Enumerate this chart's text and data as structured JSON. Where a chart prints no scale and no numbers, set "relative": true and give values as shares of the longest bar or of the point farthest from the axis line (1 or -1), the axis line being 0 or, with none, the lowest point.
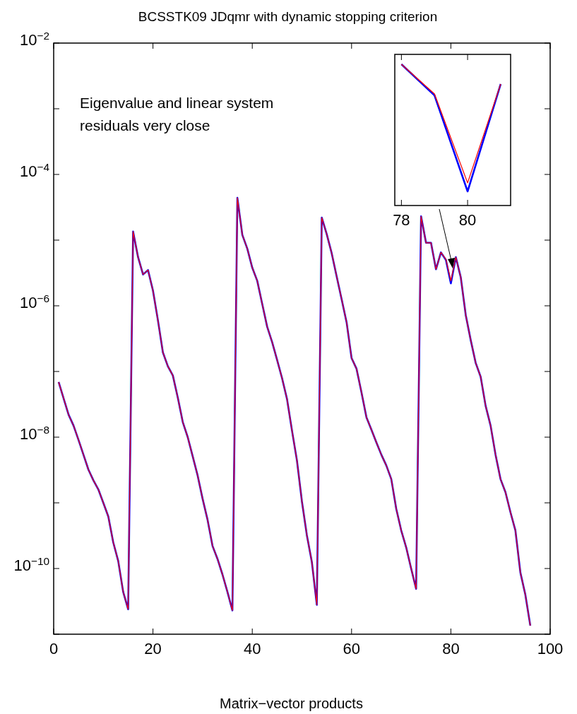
{
  "chart_data": [
    {
      "type": "line",
      "title": "BCSSTK09 JDqmr with dynamic stopping criterion",
      "xlabel": "Matrix−vector products",
      "annotations": [
        "Eigenvalue and linear system\nresiduals very close"
      ],
      "log": "y",
      "grid": false,
      "xlim": [
        0,
        100
      ],
      "xticks": [
        0,
        20,
        40,
        60,
        80,
        100
      ],
      "ylim": [
        1e-11,
        0.01
      ],
      "yticks": [
        {
          "value": 0.01,
          "label": "10$^{−2}$"
        },
        {
          "value": 0.001,
          "label": null
        },
        {
          "value": 0.0001,
          "label": "10$^{−4}$"
        },
        {
          "value": 1e-05,
          "label": null
        },
        {
          "value": 1e-06,
          "label": "10$^{−6}$"
        },
        {
          "value": 1e-07,
          "label": null
        },
        {
          "value": 1e-08,
          "label": "10$^{−8}$"
        },
        {
          "value": 1e-09,
          "label": null
        },
        {
          "value": 1e-10,
          "label": "10$^{−10}$"
        },
        {
          "value": 1e-11,
          "label": null
        }
      ],
      "x": [
        1,
        2,
        3,
        4,
        5,
        6,
        7,
        8,
        9,
        10,
        11,
        12,
        13,
        14,
        15,
        16,
        17,
        18,
        19,
        20,
        21,
        22,
        23,
        24,
        25,
        26,
        27,
        28,
        29,
        30,
        31,
        32,
        33,
        34,
        35,
        36,
        37,
        38,
        39,
        40,
        41,
        42,
        43,
        44,
        45,
        46,
        47,
        48,
        49,
        50,
        51,
        52,
        53,
        54,
        55,
        56,
        57,
        58,
        59,
        60,
        61,
        62,
        63,
        64,
        65,
        66,
        67,
        68,
        69,
        70,
        71,
        72,
        73,
        74,
        75,
        76,
        77,
        78,
        79,
        80,
        81,
        82,
        83,
        84,
        85,
        86,
        87,
        88,
        89,
        90,
        91,
        92,
        93,
        94,
        95,
        96
      ],
      "series": [
        {
          "color": "#0000ff",
          "values": [
            6.9e-08,
            3.9e-08,
            2.2e-08,
            1.5e-08,
            9.1e-09,
            5.4e-09,
            3.2e-09,
            2.2e-09,
            1.6e-09,
            1e-09,
            6.2e-10,
            2.5e-10,
            1.3e-10,
            4.4e-11,
            2.4e-11,
            1.35e-05,
            5.5e-06,
            3e-06,
            3.5e-06,
            1.7e-06,
            6e-07,
            1.95e-07,
            1.2e-07,
            8.7e-08,
            4e-08,
            1.7e-08,
            1e-08,
            5.1e-09,
            2.6e-09,
            1.15e-09,
            5.5e-10,
            2.2e-10,
            1.4e-10,
            8.1e-11,
            4.4e-11,
            2.3e-11,
            4.4e-05,
            1.2e-05,
            7.4e-06,
            3.8e-06,
            2.4e-06,
            1.07e-06,
            4.8e-07,
            2.8e-07,
            1.5e-07,
            7.9e-08,
            3.8e-08,
            1.26e-08,
            4.4e-09,
            1.05e-09,
            3.2e-10,
            1.26e-10,
            2.8e-11,
            2.2e-05,
            1.23e-05,
            6.3e-06,
            2.8e-06,
            1.26e-06,
            5.6e-07,
            1.6e-07,
            1.1e-07,
            4.8e-08,
            2e-08,
            1.3e-08,
            8.3e-09,
            5.4e-09,
            3.7e-09,
            2.3e-09,
            8.1e-10,
            3.8e-10,
            2.1e-10,
            1e-10,
            4.9e-11,
            2.3e-05,
            9.1e-06,
            9.1e-06,
            3.6e-06,
            6.5e-06,
            5e-06,
            2.2e-06,
            5.5e-06,
            2.7e-06,
            7.2e-07,
            3e-07,
            1.35e-07,
            8.3e-08,
            3e-08,
            1.5e-08,
            5.4e-09,
            2.3e-09,
            1.45e-09,
            7.2e-10,
            3.8e-10,
            8.7e-11,
            4e-11,
            1.35e-11
          ]
        },
        {
          "color": "#ff0000",
          "values": [
            6.9e-08,
            3.9e-08,
            2.2e-08,
            1.5e-08,
            9.1e-09,
            5.4e-09,
            3.2e-09,
            2.2e-09,
            1.6e-09,
            1e-09,
            6.2e-10,
            2.5e-10,
            1.3e-10,
            4.4e-11,
            2.4e-11,
            1.35e-05,
            5.5e-06,
            3e-06,
            3.5e-06,
            1.7e-06,
            6e-07,
            1.95e-07,
            1.2e-07,
            8.7e-08,
            4e-08,
            1.7e-08,
            1e-08,
            5.1e-09,
            2.6e-09,
            1.15e-09,
            5.5e-10,
            2.2e-10,
            1.4e-10,
            8.1e-11,
            4.4e-11,
            2.3e-11,
            4.4e-05,
            1.2e-05,
            7.4e-06,
            3.8e-06,
            2.4e-06,
            1.07e-06,
            4.8e-07,
            2.8e-07,
            1.5e-07,
            7.9e-08,
            3.8e-08,
            1.26e-08,
            4.4e-09,
            1.05e-09,
            3.2e-10,
            1.26e-10,
            2.8e-11,
            2.2e-05,
            1.23e-05,
            6.3e-06,
            2.8e-06,
            1.26e-06,
            5.6e-07,
            1.6e-07,
            1.1e-07,
            4.8e-08,
            2e-08,
            1.3e-08,
            8.3e-09,
            5.4e-09,
            3.7e-09,
            2.3e-09,
            8.1e-10,
            3.8e-10,
            2.1e-10,
            1e-10,
            4.9e-11,
            2.3e-05,
            9.1e-06,
            9.1e-06,
            3.6e-06,
            6.5e-06,
            5.1e-06,
            2.4e-06,
            5.5e-06,
            2.7e-06,
            7.2e-07,
            3e-07,
            1.35e-07,
            8.3e-08,
            3e-08,
            1.5e-08,
            5.4e-09,
            2.3e-09,
            1.45e-09,
            7.2e-10,
            3.8e-10,
            8.7e-11,
            4e-11,
            1.35e-11
          ]
        }
      ]
    },
    {
      "type": "line",
      "relative": true,
      "tick_labels": "x",
      "xlim": [
        77.8,
        81.3
      ],
      "xticks": [
        78,
        80
      ],
      "x": [
        78,
        79,
        80,
        81
      ],
      "series": [
        {
          "color": "#0000ff",
          "values": [
            1,
            0.78,
            0.1,
            0.86
          ]
        },
        {
          "color": "#ff0000",
          "values": [
            1,
            0.79,
            0.16,
            0.86
          ]
        }
      ]
    }
  ]
}
